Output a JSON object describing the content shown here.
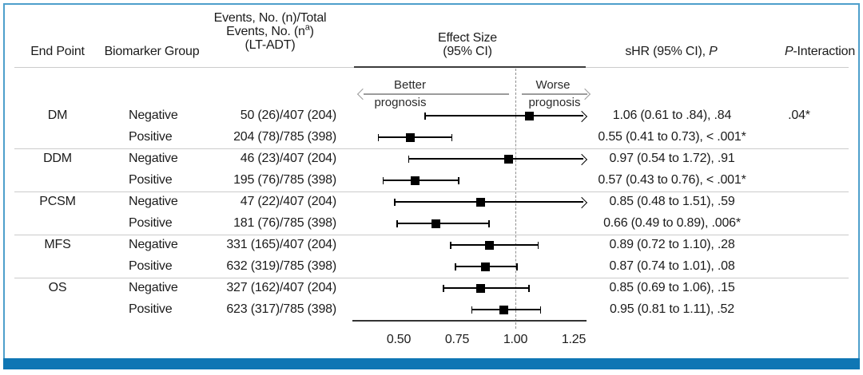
{
  "figure": {
    "columns": {
      "end_point": "End Point",
      "biomarker_group": "Biomarker Group",
      "events_line1": "Events, No. (n)/Total",
      "events_line2_pre": "Events, No. (n",
      "events_line2_sup": "a",
      "events_line2_post": ")",
      "events_line3": "(LT-ADT)",
      "effect_line1": "Effect Size",
      "effect_line2": "(95% CI)",
      "shr_pre": "sHR (95% CI), ",
      "shr_p": "P",
      "pint_p": "P",
      "pint_rest": "-Interaction"
    },
    "annotations": {
      "better_line1": "Better",
      "better_line2": "prognosis",
      "worse_line1": "Worse",
      "worse_line2": "prognosis"
    },
    "colors": {
      "frame_border": "#4e9fcb",
      "bottom_bar": "#0f76b4",
      "marker_black": "#000000",
      "separator_gray": "#cbcbcb",
      "axis_dark": "#3c3c3c",
      "arrow_gray": "#9b9b9b",
      "reference_dash_gray": "#8f8f8f"
    }
  },
  "chart_data": {
    "type": "forest",
    "x_axis": {
      "tick_values": [
        0.5,
        0.75,
        1.0,
        1.25
      ],
      "tick_labels": [
        "0.50",
        "0.75",
        "1.00",
        "1.25"
      ],
      "visible_range": [
        0.31,
        1.3
      ],
      "reference_line": 1.0
    },
    "legend_direction": {
      "left_of_reference": "Better prognosis",
      "right_of_reference": "Worse prognosis"
    },
    "rows": [
      {
        "end_point": "DM",
        "biomarker": "Negative",
        "events": "50 (26)/407 (204)",
        "est": 1.06,
        "lo": 0.61,
        "hi": null,
        "arrow": true,
        "shr": "1.06 (0.61 to .84), .84",
        "p_interaction": ".04*"
      },
      {
        "end_point": "",
        "biomarker": "Positive",
        "events": "204 (78)/785 (398)",
        "est": 0.55,
        "lo": 0.41,
        "hi": 0.73,
        "arrow": false,
        "shr": "0.55 (0.41 to 0.73), < .001*",
        "p_interaction": ""
      },
      {
        "end_point": "DDM",
        "biomarker": "Negative",
        "events": "46 (23)/407 (204)",
        "est": 0.97,
        "lo": 0.54,
        "hi": 1.72,
        "arrow": true,
        "shr": "0.97 (0.54 to 1.72), .91",
        "p_interaction": ""
      },
      {
        "end_point": "",
        "biomarker": "Positive",
        "events": "195 (76)/785 (398)",
        "est": 0.57,
        "lo": 0.43,
        "hi": 0.76,
        "arrow": false,
        "shr": "0.57 (0.43 to 0.76), < .001*",
        "p_interaction": ""
      },
      {
        "end_point": "PCSM",
        "biomarker": "Negative",
        "events": "47 (22)/407 (204)",
        "est": 0.85,
        "lo": 0.48,
        "hi": 1.51,
        "arrow": true,
        "shr": "0.85 (0.48 to 1.51), .59",
        "p_interaction": ""
      },
      {
        "end_point": "",
        "biomarker": "Positive",
        "events": "181 (76)/785 (398)",
        "est": 0.66,
        "lo": 0.49,
        "hi": 0.89,
        "arrow": false,
        "shr": "0.66 (0.49 to 0.89), .006*",
        "p_interaction": ""
      },
      {
        "end_point": "MFS",
        "biomarker": "Negative",
        "events": "331 (165)/407 (204)",
        "est": 0.89,
        "lo": 0.72,
        "hi": 1.1,
        "arrow": false,
        "shr": "0.89 (0.72 to 1.10), .28",
        "p_interaction": ""
      },
      {
        "end_point": "",
        "biomarker": "Positive",
        "events": "632 (319)/785 (398)",
        "est": 0.87,
        "lo": 0.74,
        "hi": 1.01,
        "arrow": false,
        "shr": "0.87 (0.74 to 1.01), .08",
        "p_interaction": ""
      },
      {
        "end_point": "OS",
        "biomarker": "Negative",
        "events": "327 (162)/407 (204)",
        "est": 0.85,
        "lo": 0.69,
        "hi": 1.06,
        "arrow": false,
        "shr": "0.85 (0.69 to 1.06), .15",
        "p_interaction": ""
      },
      {
        "end_point": "",
        "biomarker": "Positive",
        "events": "623 (317)/785 (398)",
        "est": 0.95,
        "lo": 0.81,
        "hi": 1.11,
        "arrow": false,
        "shr": "0.95 (0.81 to 1.11), .52",
        "p_interaction": ""
      }
    ],
    "group_separators_after_row_index": [
      1,
      3,
      5,
      7
    ]
  }
}
